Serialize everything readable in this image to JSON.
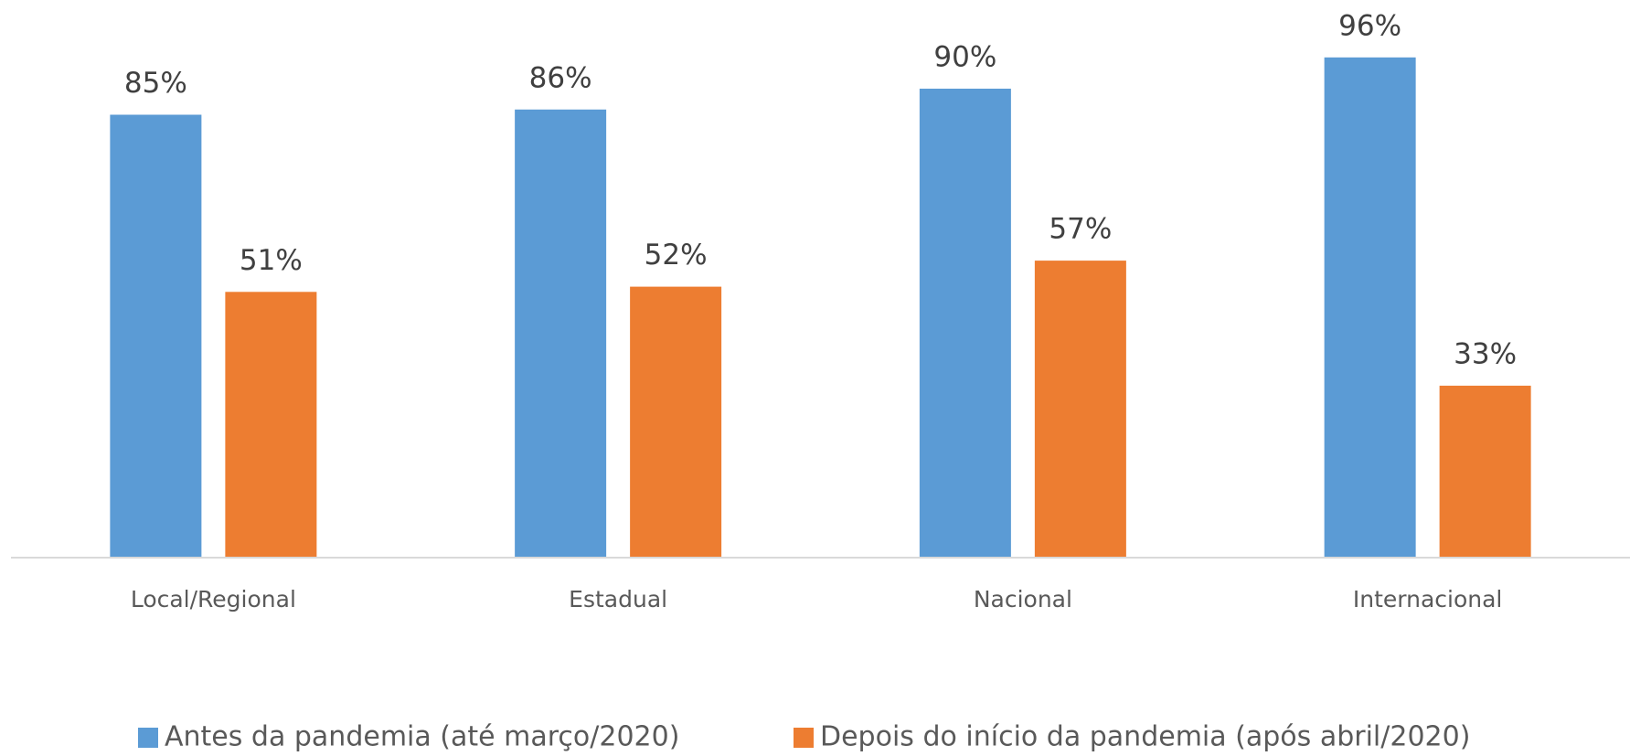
{
  "chart_data": {
    "type": "bar",
    "categories": [
      "Local/Regional",
      "Estadual",
      "Nacional",
      "Internacional"
    ],
    "series": [
      {
        "name": "Antes da pandemia (até março/2020)",
        "color": "#5b9bd5",
        "values": [
          85,
          86,
          90,
          96
        ],
        "value_labels": [
          "85%",
          "86%",
          "90%",
          "96%"
        ]
      },
      {
        "name": "Depois do início da pandemia (após abril/2020)",
        "color": "#ed7d31",
        "values": [
          51,
          52,
          57,
          33
        ],
        "value_labels": [
          "51%",
          "52%",
          "57%",
          "33%"
        ]
      }
    ],
    "ylim": [
      0,
      100
    ],
    "legend": "bottom"
  }
}
